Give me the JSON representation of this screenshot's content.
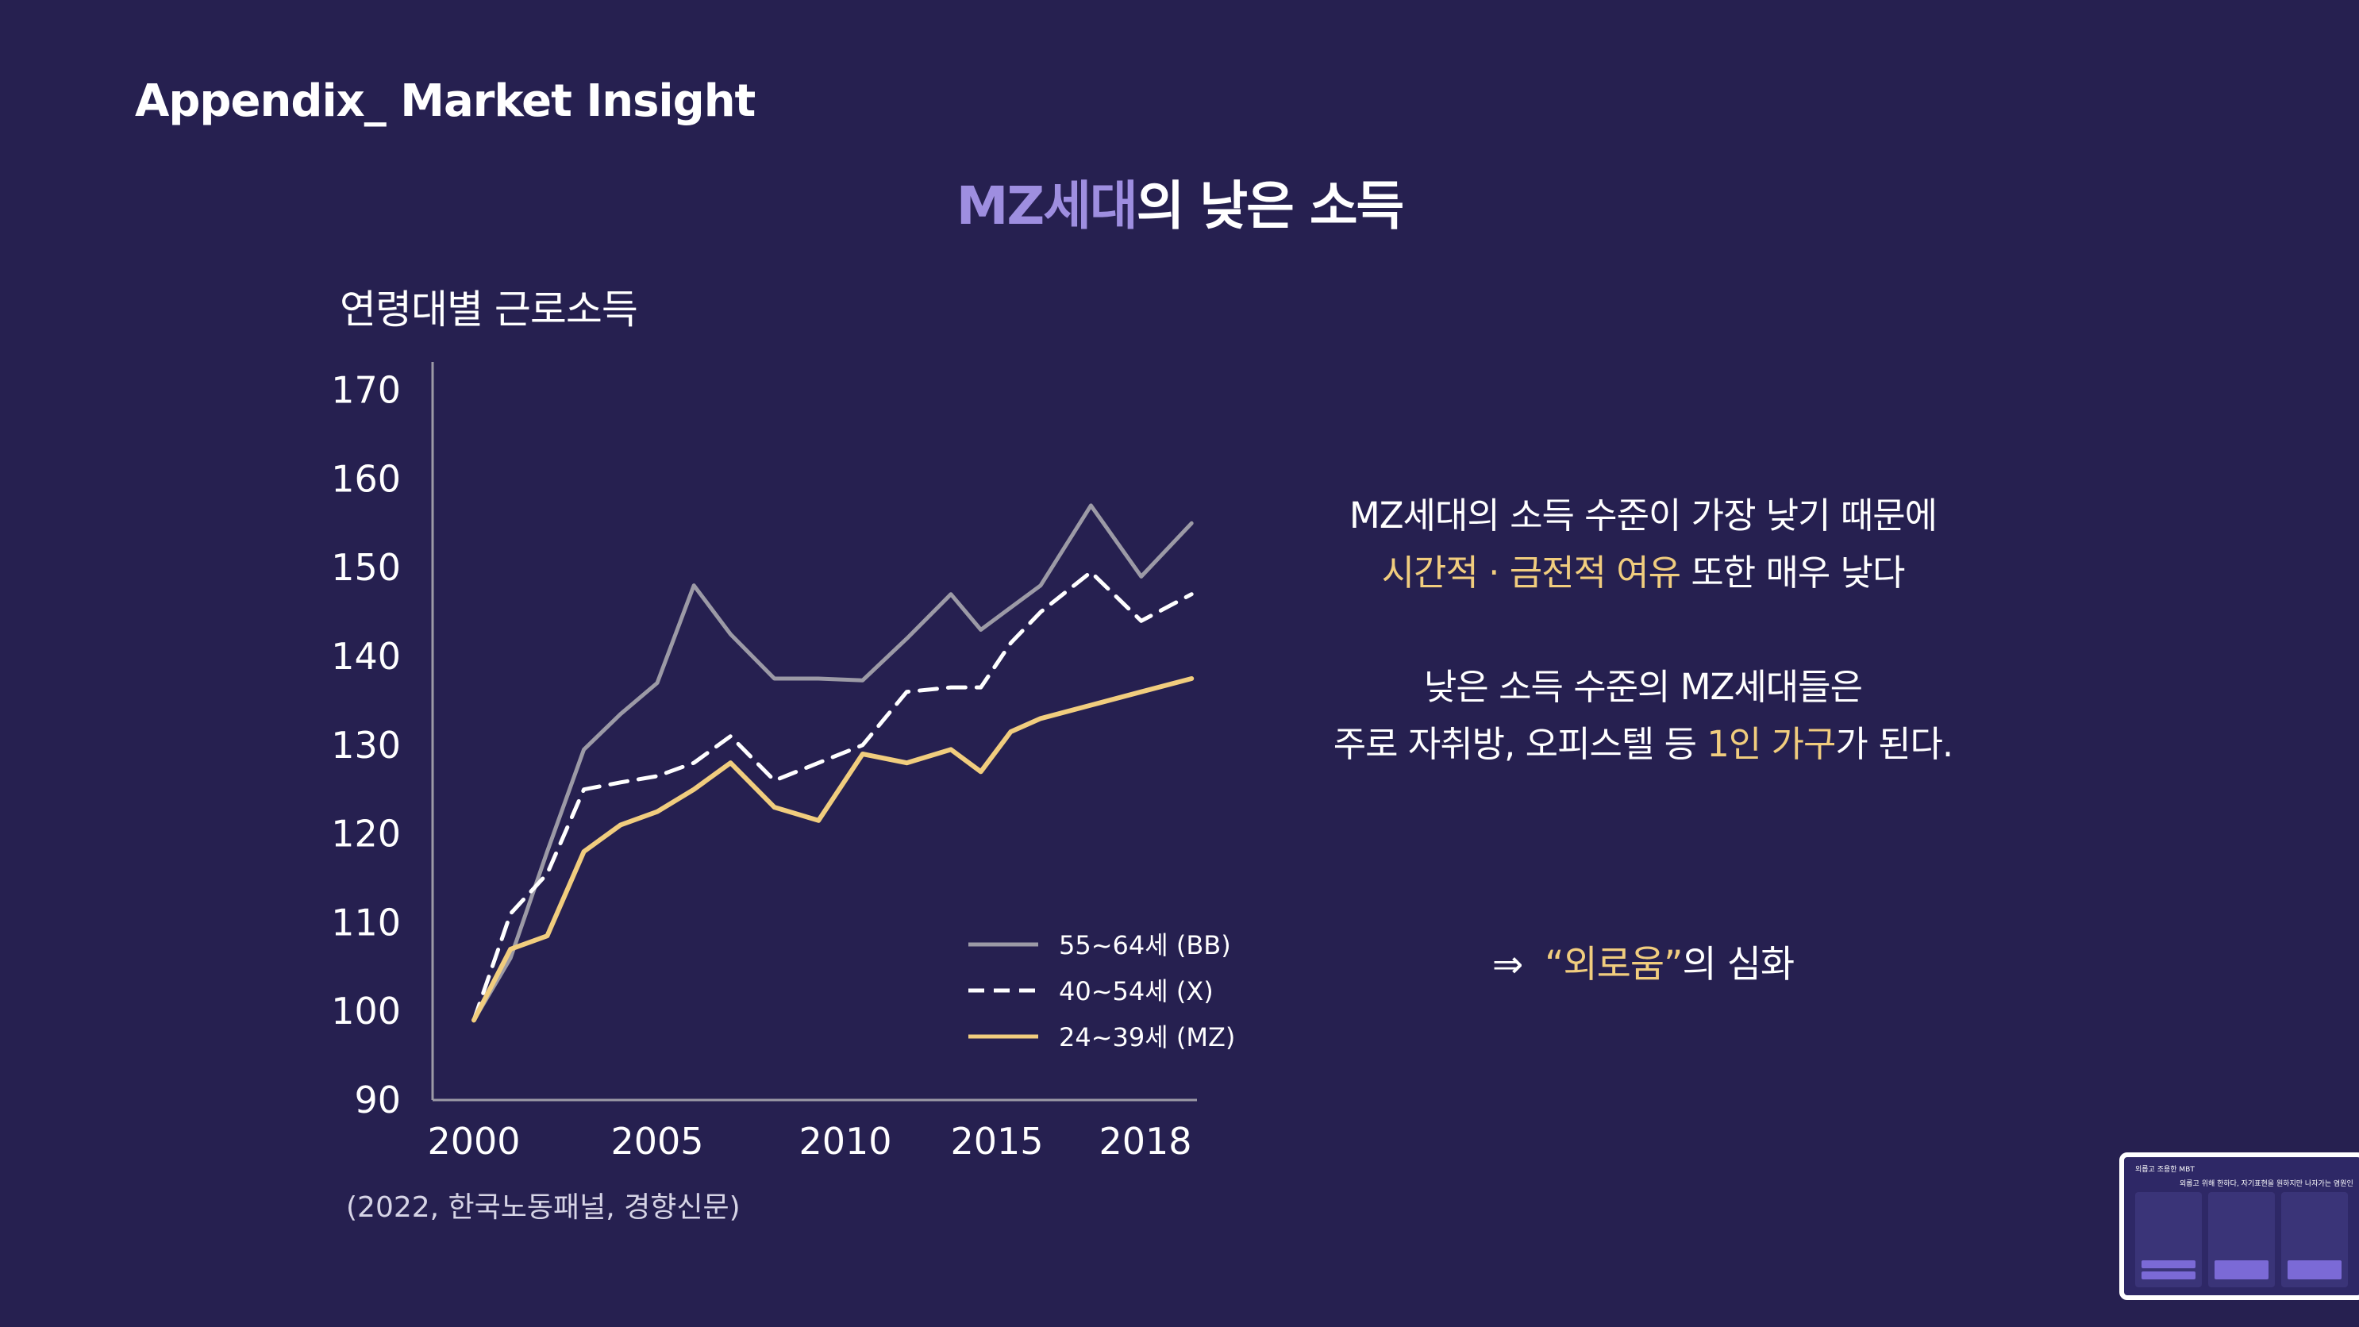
{
  "header": {
    "title": "Appendix_ Market Insight"
  },
  "slide": {
    "title_accent": "MZ세대",
    "title_rest": "의 낮은 소득"
  },
  "chart_data": {
    "type": "line",
    "title": "연령대별 근로소득",
    "x_tick_labels": [
      "2000",
      "2005",
      "2010",
      "2015",
      "2018"
    ],
    "y_ticks": [
      90,
      100,
      110,
      120,
      130,
      140,
      150,
      160,
      170
    ],
    "ylim": [
      90,
      170
    ],
    "xlim": [
      2000,
      2018
    ],
    "grid": false,
    "legend_placement": "bottom-right",
    "x": [
      2000,
      2001,
      2002,
      2003,
      2004,
      2005,
      2006,
      2007,
      2008,
      2009,
      2010,
      2011,
      2012,
      2013,
      2014,
      2015,
      2016,
      2017,
      2018
    ],
    "series": [
      {
        "name": "55~64세 (BB)",
        "style": "solid",
        "color": "#9c9aa6",
        "values": [
          99,
          106,
          118,
          129.5,
          133.5,
          137,
          148,
          142.5,
          137.5,
          137.5,
          137.3,
          142,
          147,
          143,
          145.5,
          148,
          157,
          149,
          155
        ]
      },
      {
        "name": "40~54세 (X)",
        "style": "dashed",
        "color": "#ffffff",
        "values": [
          99,
          111,
          115.5,
          125,
          125.8,
          126.5,
          128,
          131,
          126,
          128,
          130,
          136,
          136.5,
          136.5,
          141.5,
          145,
          149.5,
          144,
          147
        ]
      },
      {
        "name": "24~39세 (MZ)",
        "style": "solid",
        "color": "#f1cd7e",
        "values": [
          99,
          107,
          108.5,
          118,
          121,
          122.5,
          125,
          128,
          123,
          121.5,
          129,
          128,
          129.5,
          127,
          131.5,
          133,
          134.5,
          136,
          137.5
        ]
      }
    ]
  },
  "source": "(2022, 한국노동패널, 경향신문)",
  "insights": {
    "line1": "MZ세대의 소득 수준이 가장 낮기 때문에",
    "line2_hl": "시간적 · 금전적 여유",
    "line2_rest": " 또한 매우 낮다",
    "line3": "낮은 소득 수준의 MZ세대들은",
    "line4_pre": "주로 자취방, 오피스텔 등 ",
    "line4_hl": "1인 가구",
    "line4_post": "가 된다.",
    "conclusion_arrow": "⇒",
    "conclusion_hl": "“외로움”",
    "conclusion_rest": "의 심화"
  },
  "thumbnail": {
    "title": "외롭고 조용한 MBT",
    "subtitle": "외롭고 위해 한하다, 자기표현을 원하지만 나자가는 염원인"
  }
}
